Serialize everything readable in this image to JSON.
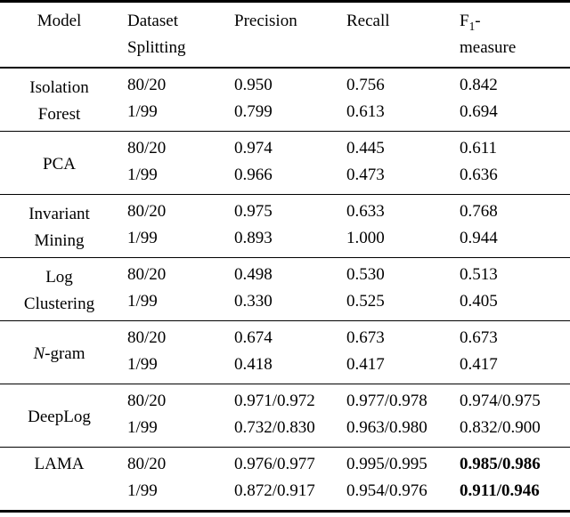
{
  "colors": {
    "text": "#000000",
    "rule": "#000000",
    "background": "#ffffff"
  },
  "table": {
    "headers": [
      {
        "id": "model",
        "lines": [
          "Model"
        ],
        "align": "center"
      },
      {
        "id": "dataset-splitting",
        "lines": [
          "Dataset",
          "Splitting"
        ],
        "align": "left"
      },
      {
        "id": "precision",
        "lines": [
          "Precision"
        ],
        "align": "left"
      },
      {
        "id": "recall",
        "lines": [
          "Recall"
        ],
        "align": "left"
      },
      {
        "id": "f1-measure",
        "lines": [
          "F1-",
          "measure"
        ],
        "align": "left",
        "f1_subscript": true
      }
    ],
    "groups": [
      {
        "id": "isolation-forest",
        "model_lines": [
          "Isolation",
          "Forest"
        ],
        "rows": [
          {
            "split": "80/20",
            "precision": "0.950",
            "recall": "0.756",
            "f1": "0.842",
            "f1_bold": false
          },
          {
            "split": "1/99",
            "precision": "0.799",
            "recall": "0.613",
            "f1": "0.694",
            "f1_bold": false
          }
        ]
      },
      {
        "id": "pca",
        "model_lines": [
          "PCA"
        ],
        "rows": [
          {
            "split": "80/20",
            "precision": "0.974",
            "recall": "0.445",
            "f1": "0.611",
            "f1_bold": false
          },
          {
            "split": "1/99",
            "precision": "0.966",
            "recall": "0.473",
            "f1": "0.636",
            "f1_bold": false
          }
        ]
      },
      {
        "id": "invariant-mining",
        "model_lines": [
          "Invariant",
          "Mining"
        ],
        "rows": [
          {
            "split": "80/20",
            "precision": "0.975",
            "recall": "0.633",
            "f1": "0.768",
            "f1_bold": false
          },
          {
            "split": "1/99",
            "precision": "0.893",
            "recall": "1.000",
            "f1": "0.944",
            "f1_bold": false
          }
        ]
      },
      {
        "id": "log-clustering",
        "model_lines": [
          "Log",
          "Clustering"
        ],
        "rows": [
          {
            "split": "80/20",
            "precision": "0.498",
            "recall": "0.530",
            "f1": "0.513",
            "f1_bold": false
          },
          {
            "split": "1/99",
            "precision": "0.330",
            "recall": "0.525",
            "f1": "0.405",
            "f1_bold": false
          }
        ]
      },
      {
        "id": "n-gram",
        "model_lines": [
          "N-gram"
        ],
        "model_italic_first_letter": true,
        "rows": [
          {
            "split": "80/20",
            "precision": "0.674",
            "recall": "0.673",
            "f1": "0.673",
            "f1_bold": false
          },
          {
            "split": "1/99",
            "precision": "0.418",
            "recall": "0.417",
            "f1": "0.417",
            "f1_bold": false
          }
        ]
      },
      {
        "id": "deeplog",
        "model_lines": [
          "DeepLog"
        ],
        "rows": [
          {
            "split": "80/20",
            "precision": "0.971/0.972",
            "recall": "0.977/0.978",
            "f1": "0.974/0.975",
            "f1_bold": false
          },
          {
            "split": "1/99",
            "precision": "0.732/0.830",
            "recall": "0.963/0.980",
            "f1": "0.832/0.900",
            "f1_bold": false
          }
        ]
      },
      {
        "id": "lama",
        "model_lines": [
          "LAMA"
        ],
        "model_valign": "top",
        "rows": [
          {
            "split": "80/20",
            "precision": "0.976/0.977",
            "recall": "0.995/0.995",
            "f1": "0.985/0.986",
            "f1_bold": true
          },
          {
            "split": "1/99",
            "precision": "0.872/0.917",
            "recall": "0.954/0.976",
            "f1": "0.911/0.946",
            "f1_bold": true
          }
        ]
      }
    ]
  }
}
